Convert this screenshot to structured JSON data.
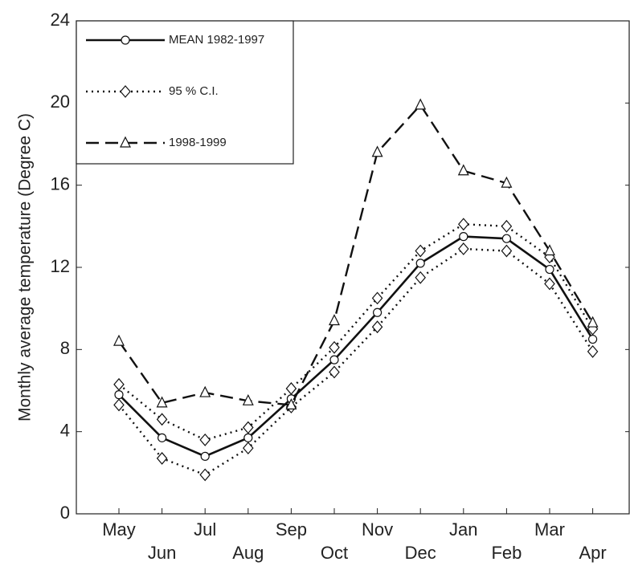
{
  "chart_data": {
    "type": "line",
    "y_label": "Monthly average temperature (Degree C)",
    "categories": [
      "May",
      "Jun",
      "Jul",
      "Aug",
      "Sep",
      "Oct",
      "Nov",
      "Dec",
      "Jan",
      "Feb",
      "Mar",
      "Apr"
    ],
    "ylim": [
      0,
      24
    ],
    "yticks": [
      0,
      4,
      8,
      12,
      16,
      20,
      24
    ],
    "legend": "upper left",
    "series": [
      {
        "name": "MEAN 1982-1997",
        "color": "#111111",
        "style": "solid",
        "marker": "circle",
        "values": [
          5.8,
          3.7,
          2.8,
          3.7,
          5.6,
          7.5,
          9.8,
          12.2,
          13.5,
          13.4,
          11.9,
          8.5
        ]
      },
      {
        "name": "95 % C.I.",
        "color": "#111111",
        "style": "dotted",
        "marker": "diamond",
        "values": [
          6.3,
          4.6,
          3.6,
          4.2,
          6.1,
          8.1,
          10.5,
          12.8,
          14.1,
          14.0,
          12.5,
          9.0
        ],
        "lower": [
          5.3,
          2.7,
          1.9,
          3.2,
          5.2,
          6.9,
          9.1,
          11.5,
          12.9,
          12.8,
          11.2,
          7.9
        ]
      },
      {
        "name": "1998-1999",
        "color": "#111111",
        "style": "dashed",
        "marker": "triangle",
        "values": [
          8.4,
          5.4,
          5.9,
          5.5,
          5.3,
          9.4,
          17.6,
          19.9,
          16.7,
          16.1,
          12.8,
          9.3
        ]
      }
    ]
  }
}
